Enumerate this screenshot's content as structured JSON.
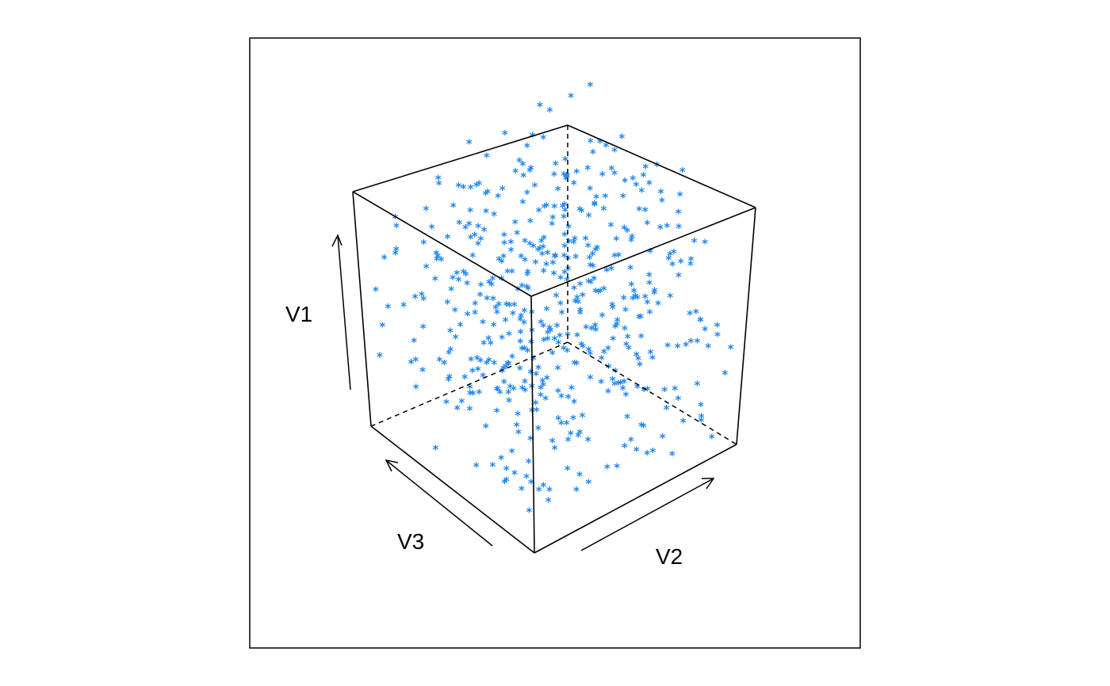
{
  "chart_data": {
    "type": "scatter",
    "title": "",
    "axes": [
      {
        "name": "V1",
        "label": "V1",
        "direction": "vertical"
      },
      {
        "name": "V2",
        "label": "V2",
        "direction": "right"
      },
      {
        "name": "V3",
        "label": "V3",
        "direction": "left"
      }
    ],
    "box": true,
    "grid": false,
    "legend": "none",
    "marker": "*",
    "point_color": "#1e87f0",
    "n_points": 500,
    "range": {
      "V1": [
        0,
        1
      ],
      "V2": [
        0,
        1
      ],
      "V3": [
        0,
        1
      ]
    }
  }
}
